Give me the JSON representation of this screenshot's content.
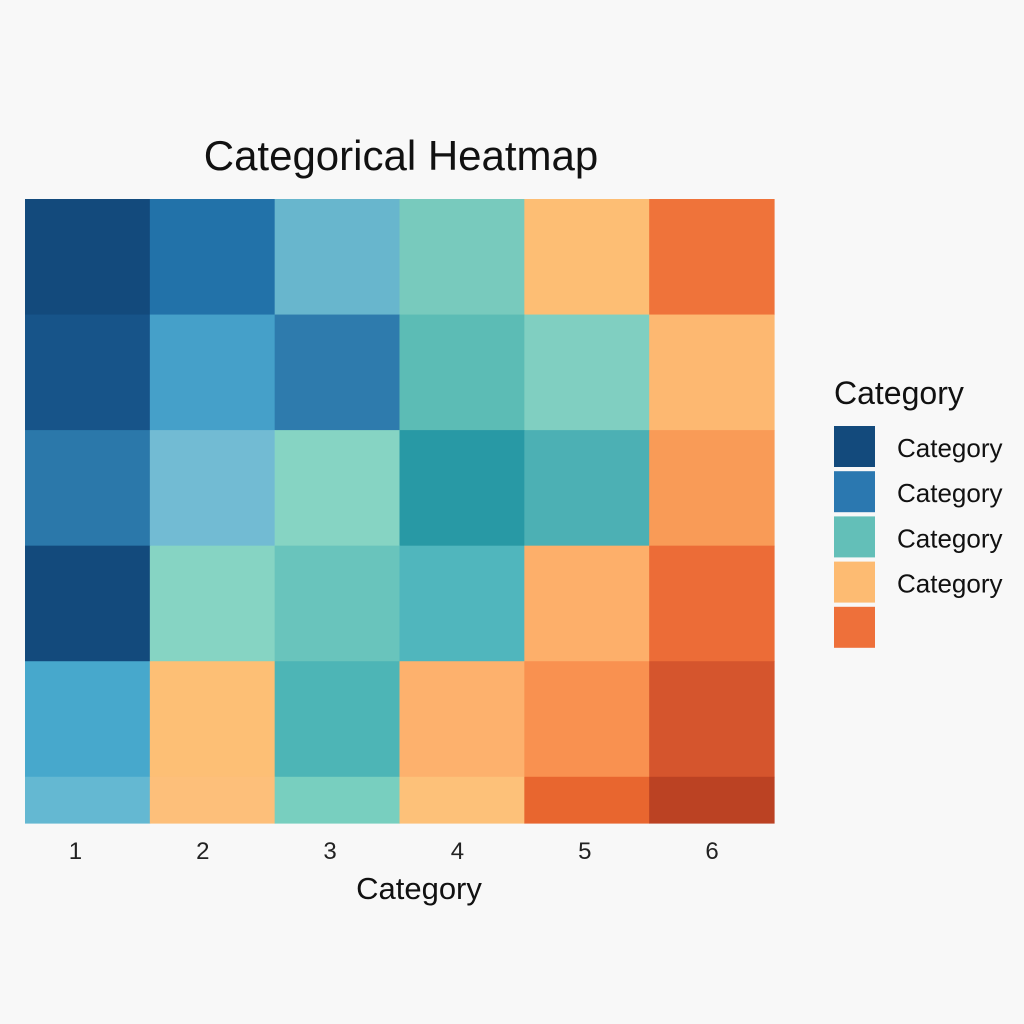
{
  "chart_data": {
    "type": "heatmap",
    "title": "Categorical Heatmap",
    "xlabel": "Category",
    "ylabel": "",
    "x_categories": [
      "1",
      "2",
      "3",
      "4",
      "5",
      "6"
    ],
    "row_weights": [
      1,
      1,
      1,
      1,
      1,
      0.4
    ],
    "cells": [
      [
        "#134a7c",
        "#2272a9",
        "#68b6cd",
        "#78cabd",
        "#fdbe74",
        "#ef733a"
      ],
      [
        "#175489",
        "#45a0c9",
        "#2e7bad",
        "#5cbcb5",
        "#80cfc1",
        "#fdb871"
      ],
      [
        "#2b78aa",
        "#72bbd3",
        "#86d4c3",
        "#2899a5",
        "#4cb0b4",
        "#f99b57"
      ],
      [
        "#134a7c",
        "#86d4c3",
        "#69c4bc",
        "#50b6bd",
        "#fdaf6a",
        "#ec6c37"
      ],
      [
        "#47a8cc",
        "#fdbf75",
        "#4db5b6",
        "#fdb16d",
        "#f99150",
        "#d5552d"
      ],
      [
        "#64b8d2",
        "#fdbf7a",
        "#78cfbf",
        "#fdc179",
        "#e8662f",
        "#bb4223"
      ]
    ],
    "legend": {
      "title": "Category",
      "position": "right",
      "entries": [
        {
          "label": "Category",
          "color": "#134a7c"
        },
        {
          "label": "Category",
          "color": "#2b78b0"
        },
        {
          "label": "Category",
          "color": "#63bfb8"
        },
        {
          "label": "Category",
          "color": "#fdbb72"
        },
        {
          "label": "",
          "color": "#ee703a"
        }
      ]
    },
    "grid": false
  }
}
